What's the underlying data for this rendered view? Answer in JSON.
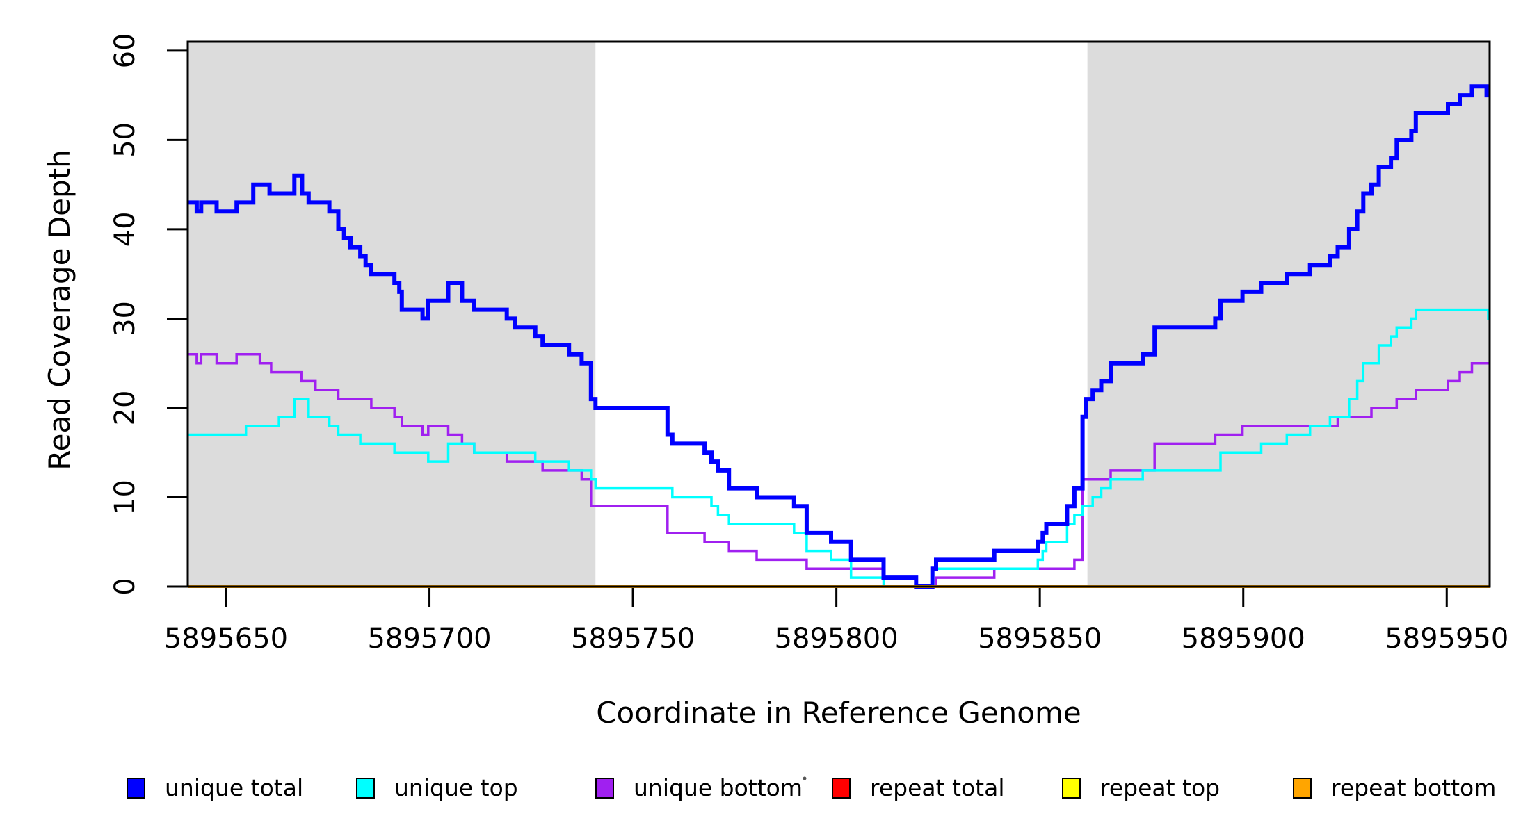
{
  "figure": {
    "x_axis_title": "Coordinate in Reference Genome",
    "y_axis_title": "Read Coverage Depth"
  },
  "chart_data": {
    "type": "line",
    "subtype": "step",
    "title": "",
    "xlabel": "Coordinate in Reference Genome",
    "ylabel": "Read Coverage Depth",
    "xlim": [
      5895640.6,
      5895960.55
    ],
    "ylim": [
      0,
      61
    ],
    "grid": false,
    "background_color": "#FFFFFF",
    "shade_color": "#DCDCDC",
    "axis_color": "#000000",
    "x_ticks": [
      5895650,
      5895700,
      5895750,
      5895800,
      5895850,
      5895900,
      5895950
    ],
    "y_ticks": [
      0,
      10,
      20,
      30,
      40,
      50,
      60
    ],
    "shaded_regions": [
      {
        "name": "left-repeat-region",
        "x0": 5895640.6,
        "x1": 5895740.8
      },
      {
        "name": "right-repeat-region",
        "x0": 5895861.7,
        "x1": 5895960.55
      }
    ],
    "legend_position": "bottom",
    "series": [
      {
        "name": "unique bottom",
        "color": "#A020F0",
        "line_width": 3.5,
        "points": [
          [
            5895640.6,
            26
          ],
          [
            5895642.8,
            25
          ],
          [
            5895643.9,
            26
          ],
          [
            5895647.7,
            25
          ],
          [
            5895652.6,
            26
          ],
          [
            5895658.3,
            25
          ],
          [
            5895661.1,
            24
          ],
          [
            5895668.5,
            23
          ],
          [
            5895672.0,
            22
          ],
          [
            5895677.6,
            21
          ],
          [
            5895685.7,
            20
          ],
          [
            5895691.4,
            19
          ],
          [
            5895693.2,
            18
          ],
          [
            5895698.3,
            17
          ],
          [
            5895699.7,
            18
          ],
          [
            5895704.6,
            17
          ],
          [
            5895708.0,
            16
          ],
          [
            5895711.0,
            15
          ],
          [
            5895719.0,
            14
          ],
          [
            5895727.8,
            13
          ],
          [
            5895737.4,
            12
          ],
          [
            5895739.7,
            9
          ],
          [
            5895758.5,
            6
          ],
          [
            5895767.6,
            5
          ],
          [
            5895773.6,
            4
          ],
          [
            5895780.4,
            3
          ],
          [
            5895792.7,
            2
          ],
          [
            5895811.6,
            1
          ],
          [
            5895819.6,
            0
          ],
          [
            5895824.5,
            1
          ],
          [
            5895838.8,
            2
          ],
          [
            5895858.5,
            3
          ],
          [
            5895860.5,
            12
          ],
          [
            5895867.4,
            13
          ],
          [
            5895878.2,
            16
          ],
          [
            5895893.1,
            17
          ],
          [
            5895899.8,
            18
          ],
          [
            5895923.2,
            19
          ],
          [
            5895931.5,
            20
          ],
          [
            5895937.7,
            21
          ],
          [
            5895942.4,
            22
          ],
          [
            5895950.3,
            23
          ],
          [
            5895953.2,
            24
          ],
          [
            5895956.2,
            25
          ]
        ]
      },
      {
        "name": "unique top",
        "color": "#00FFFF",
        "line_width": 3.5,
        "points": [
          [
            5895640.6,
            17
          ],
          [
            5895654.9,
            18
          ],
          [
            5895663.0,
            19
          ],
          [
            5895666.8,
            21
          ],
          [
            5895670.3,
            19
          ],
          [
            5895675.4,
            18
          ],
          [
            5895677.6,
            17
          ],
          [
            5895683.0,
            16
          ],
          [
            5895691.4,
            15
          ],
          [
            5895699.7,
            14
          ],
          [
            5895704.6,
            16
          ],
          [
            5895711.0,
            15
          ],
          [
            5895726.0,
            14
          ],
          [
            5895734.3,
            13
          ],
          [
            5895739.7,
            12
          ],
          [
            5895740.8,
            11
          ],
          [
            5895759.7,
            10
          ],
          [
            5895769.3,
            9
          ],
          [
            5895770.9,
            8
          ],
          [
            5895773.6,
            7
          ],
          [
            5895789.6,
            6
          ],
          [
            5895792.7,
            4
          ],
          [
            5895798.7,
            3
          ],
          [
            5895803.6,
            1
          ],
          [
            5895811.6,
            0
          ],
          [
            5895823.6,
            2
          ],
          [
            5895849.5,
            3
          ],
          [
            5895850.7,
            4
          ],
          [
            5895851.6,
            5
          ],
          [
            5895856.7,
            7
          ],
          [
            5895858.5,
            8
          ],
          [
            5895860.5,
            9
          ],
          [
            5895863.0,
            10
          ],
          [
            5895865.1,
            11
          ],
          [
            5895867.4,
            12
          ],
          [
            5895875.3,
            13
          ],
          [
            5895894.4,
            15
          ],
          [
            5895904.4,
            16
          ],
          [
            5895910.7,
            17
          ],
          [
            5895916.4,
            18
          ],
          [
            5895921.3,
            19
          ],
          [
            5895926.0,
            21
          ],
          [
            5895928.0,
            23
          ],
          [
            5895929.5,
            25
          ],
          [
            5895933.3,
            27
          ],
          [
            5895936.3,
            28
          ],
          [
            5895937.7,
            29
          ],
          [
            5895941.3,
            30
          ],
          [
            5895942.4,
            31
          ],
          [
            5895960.2,
            30
          ]
        ]
      },
      {
        "name": "unique total",
        "color": "#0000FF",
        "line_width": 6,
        "points": [
          [
            5895640.6,
            43
          ],
          [
            5895642.8,
            42
          ],
          [
            5895643.9,
            43
          ],
          [
            5895647.7,
            42
          ],
          [
            5895652.6,
            43
          ],
          [
            5895656.7,
            45
          ],
          [
            5895660.7,
            44
          ],
          [
            5895666.8,
            46
          ],
          [
            5895668.7,
            44
          ],
          [
            5895670.3,
            43
          ],
          [
            5895675.4,
            42
          ],
          [
            5895677.6,
            40
          ],
          [
            5895679.0,
            39
          ],
          [
            5895680.6,
            38
          ],
          [
            5895683.0,
            37
          ],
          [
            5895684.3,
            36
          ],
          [
            5895685.7,
            35
          ],
          [
            5895691.4,
            34
          ],
          [
            5895692.6,
            33
          ],
          [
            5895693.2,
            31
          ],
          [
            5895698.3,
            30
          ],
          [
            5895699.7,
            32
          ],
          [
            5895704.6,
            34
          ],
          [
            5895708.0,
            32
          ],
          [
            5895711.0,
            31
          ],
          [
            5895719.0,
            30
          ],
          [
            5895721.0,
            29
          ],
          [
            5895726.0,
            28
          ],
          [
            5895727.8,
            27
          ],
          [
            5895734.3,
            26
          ],
          [
            5895737.4,
            25
          ],
          [
            5895739.7,
            21
          ],
          [
            5895740.8,
            20
          ],
          [
            5895758.5,
            17
          ],
          [
            5895759.7,
            16
          ],
          [
            5895767.6,
            15
          ],
          [
            5895769.3,
            14
          ],
          [
            5895770.9,
            13
          ],
          [
            5895773.6,
            11
          ],
          [
            5895780.4,
            10
          ],
          [
            5895789.6,
            9
          ],
          [
            5895792.7,
            6
          ],
          [
            5895798.7,
            5
          ],
          [
            5895803.6,
            3
          ],
          [
            5895811.6,
            1
          ],
          [
            5895819.6,
            0
          ],
          [
            5895823.6,
            2
          ],
          [
            5895824.5,
            3
          ],
          [
            5895838.8,
            4
          ],
          [
            5895849.5,
            5
          ],
          [
            5895850.7,
            6
          ],
          [
            5895851.6,
            7
          ],
          [
            5895856.7,
            9
          ],
          [
            5895858.5,
            11
          ],
          [
            5895860.5,
            19
          ],
          [
            5895861.3,
            21
          ],
          [
            5895863.0,
            22
          ],
          [
            5895865.1,
            23
          ],
          [
            5895867.4,
            25
          ],
          [
            5895875.3,
            26
          ],
          [
            5895878.2,
            29
          ],
          [
            5895893.1,
            30
          ],
          [
            5895894.4,
            32
          ],
          [
            5895899.8,
            33
          ],
          [
            5895904.4,
            34
          ],
          [
            5895910.7,
            35
          ],
          [
            5895916.4,
            36
          ],
          [
            5895921.3,
            37
          ],
          [
            5895923.2,
            38
          ],
          [
            5895926.0,
            40
          ],
          [
            5895928.0,
            42
          ],
          [
            5895929.5,
            44
          ],
          [
            5895931.5,
            45
          ],
          [
            5895933.3,
            47
          ],
          [
            5895936.3,
            48
          ],
          [
            5895937.7,
            50
          ],
          [
            5895941.3,
            51
          ],
          [
            5895942.4,
            53
          ],
          [
            5895950.3,
            54
          ],
          [
            5895953.2,
            55
          ],
          [
            5895956.2,
            56
          ],
          [
            5895959.8,
            55
          ]
        ]
      },
      {
        "name": "repeat total",
        "color": "#FF0000",
        "line_width": 3.5,
        "points": [
          [
            5895640.6,
            0
          ]
        ]
      },
      {
        "name": "repeat top",
        "color": "#FFFF00",
        "line_width": 3.5,
        "points": [
          [
            5895640.6,
            0
          ]
        ]
      },
      {
        "name": "repeat bottom",
        "color": "#FFA500",
        "line_width": 4,
        "points": [
          [
            5895640.6,
            0
          ]
        ]
      }
    ]
  },
  "legend": {
    "items": [
      {
        "label": "unique total",
        "color": "#0000FF"
      },
      {
        "label": "unique top",
        "color": "#00FFFF"
      },
      {
        "label": "unique bottom",
        "color": "#A020F0"
      },
      {
        "label": "repeat total",
        "color": "#FF0000"
      },
      {
        "label": "repeat top",
        "color": "#FFFF00"
      },
      {
        "label": "repeat bottom",
        "color": "#FFA500"
      }
    ]
  }
}
